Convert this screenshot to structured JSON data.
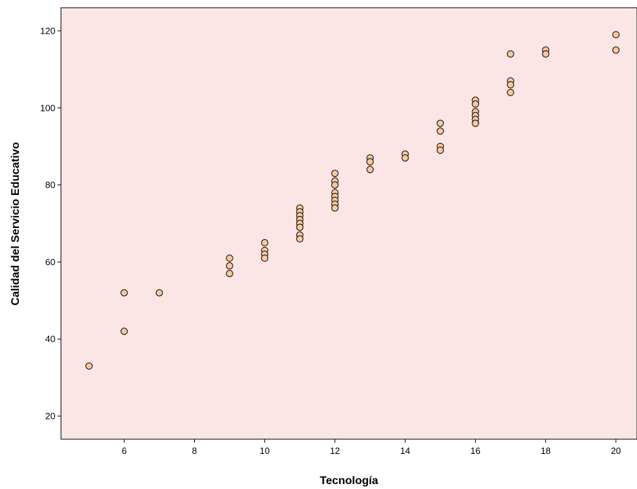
{
  "chart_data": {
    "type": "scatter",
    "title": "",
    "xlabel": "Tecnología",
    "ylabel": "Calidad del Servicio Educativo",
    "xlim": [
      4.2,
      20.6
    ],
    "ylim": [
      14,
      126
    ],
    "xticks": [
      6,
      8,
      10,
      12,
      14,
      16,
      18,
      20
    ],
    "yticks": [
      20,
      40,
      60,
      80,
      100,
      120
    ],
    "grid": false,
    "legend": "none",
    "colors": {
      "background": "#fbe5e5",
      "marker_fill": "#f9c89a",
      "marker_edge": "#000000"
    },
    "points": [
      [
        5,
        33
      ],
      [
        6,
        52
      ],
      [
        6,
        42
      ],
      [
        7,
        52
      ],
      [
        9,
        61
      ],
      [
        9,
        59
      ],
      [
        9,
        57
      ],
      [
        10,
        65
      ],
      [
        10,
        63
      ],
      [
        10,
        62
      ],
      [
        10,
        61
      ],
      [
        11,
        74
      ],
      [
        11,
        73
      ],
      [
        11,
        72
      ],
      [
        11,
        71
      ],
      [
        11,
        70
      ],
      [
        11,
        69
      ],
      [
        11,
        67
      ],
      [
        11,
        66
      ],
      [
        12,
        83
      ],
      [
        12,
        81
      ],
      [
        12,
        80
      ],
      [
        12,
        78
      ],
      [
        12,
        77
      ],
      [
        12,
        76
      ],
      [
        12,
        75
      ],
      [
        12,
        74
      ],
      [
        13,
        87
      ],
      [
        13,
        86
      ],
      [
        13,
        84
      ],
      [
        14,
        88
      ],
      [
        14,
        87
      ],
      [
        15,
        96
      ],
      [
        15,
        94
      ],
      [
        15,
        90
      ],
      [
        15,
        89
      ],
      [
        16,
        102
      ],
      [
        16,
        101
      ],
      [
        16,
        99
      ],
      [
        16,
        98
      ],
      [
        16,
        97
      ],
      [
        16,
        96
      ],
      [
        17,
        114
      ],
      [
        17,
        107
      ],
      [
        17,
        106
      ],
      [
        17,
        104
      ],
      [
        18,
        115
      ],
      [
        18,
        114
      ],
      [
        20,
        119
      ],
      [
        20,
        115
      ]
    ]
  }
}
